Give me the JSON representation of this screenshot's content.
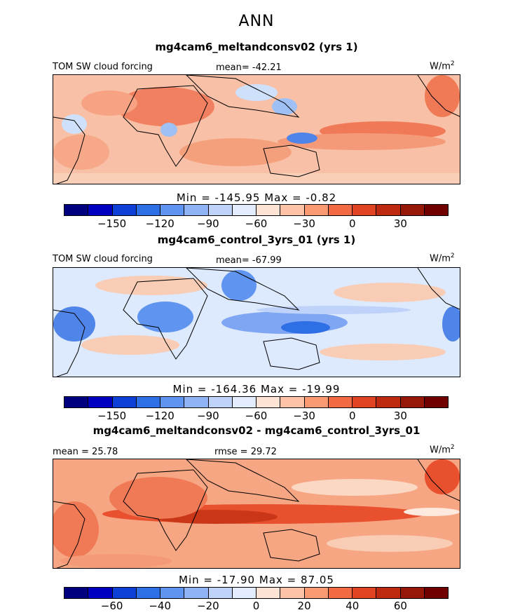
{
  "header": {
    "title": "ANN"
  },
  "panels": [
    {
      "title": "mg4cam6_meltandconsv02 (yrs 1)",
      "variable_label": "TOM SW cloud forcing",
      "mean_label": "mean=",
      "mean_value": "-42.21",
      "units": "W/m",
      "units_exp": "2",
      "min_label": "Min =",
      "min_value": "-145.95",
      "max_label": "Max =",
      "max_value": "-0.82",
      "ticks": [
        "−150",
        "−120",
        "−90",
        "−60",
        "−30",
        "0",
        "30"
      ]
    },
    {
      "title": "mg4cam6_control_3yrs_01 (yrs 1)",
      "variable_label": "TOM SW cloud forcing",
      "mean_label": "mean=",
      "mean_value": "-67.99",
      "units": "W/m",
      "units_exp": "2",
      "min_label": "Min =",
      "min_value": "-164.36",
      "max_label": "Max =",
      "max_value": "-19.99",
      "ticks": [
        "−150",
        "−120",
        "−90",
        "−60",
        "−30",
        "0",
        "30"
      ]
    },
    {
      "title": "mg4cam6_meltandconsv02 - mg4cam6_control_3yrs_01",
      "mean_label": "mean =",
      "mean_value": "25.78",
      "rmse_label": "rmse =",
      "rmse_value": "29.72",
      "units": "W/m",
      "units_exp": "2",
      "min_label": "Min =",
      "min_value": "-17.90",
      "max_label": "Max =",
      "max_value": "87.05",
      "ticks": [
        "−60",
        "−40",
        "−20",
        "0",
        "20",
        "40",
        "60"
      ]
    }
  ],
  "colorbar_colors": [
    "#00007f",
    "#0000c0",
    "#0e3fd6",
    "#2f6fe6",
    "#5f95f0",
    "#8fb4f5",
    "#bfd3fa",
    "#e3ecfd",
    "#fde3d3",
    "#fcc3a7",
    "#f99a72",
    "#f26a43",
    "#e04322",
    "#bd2a10",
    "#961808",
    "#700000"
  ]
}
